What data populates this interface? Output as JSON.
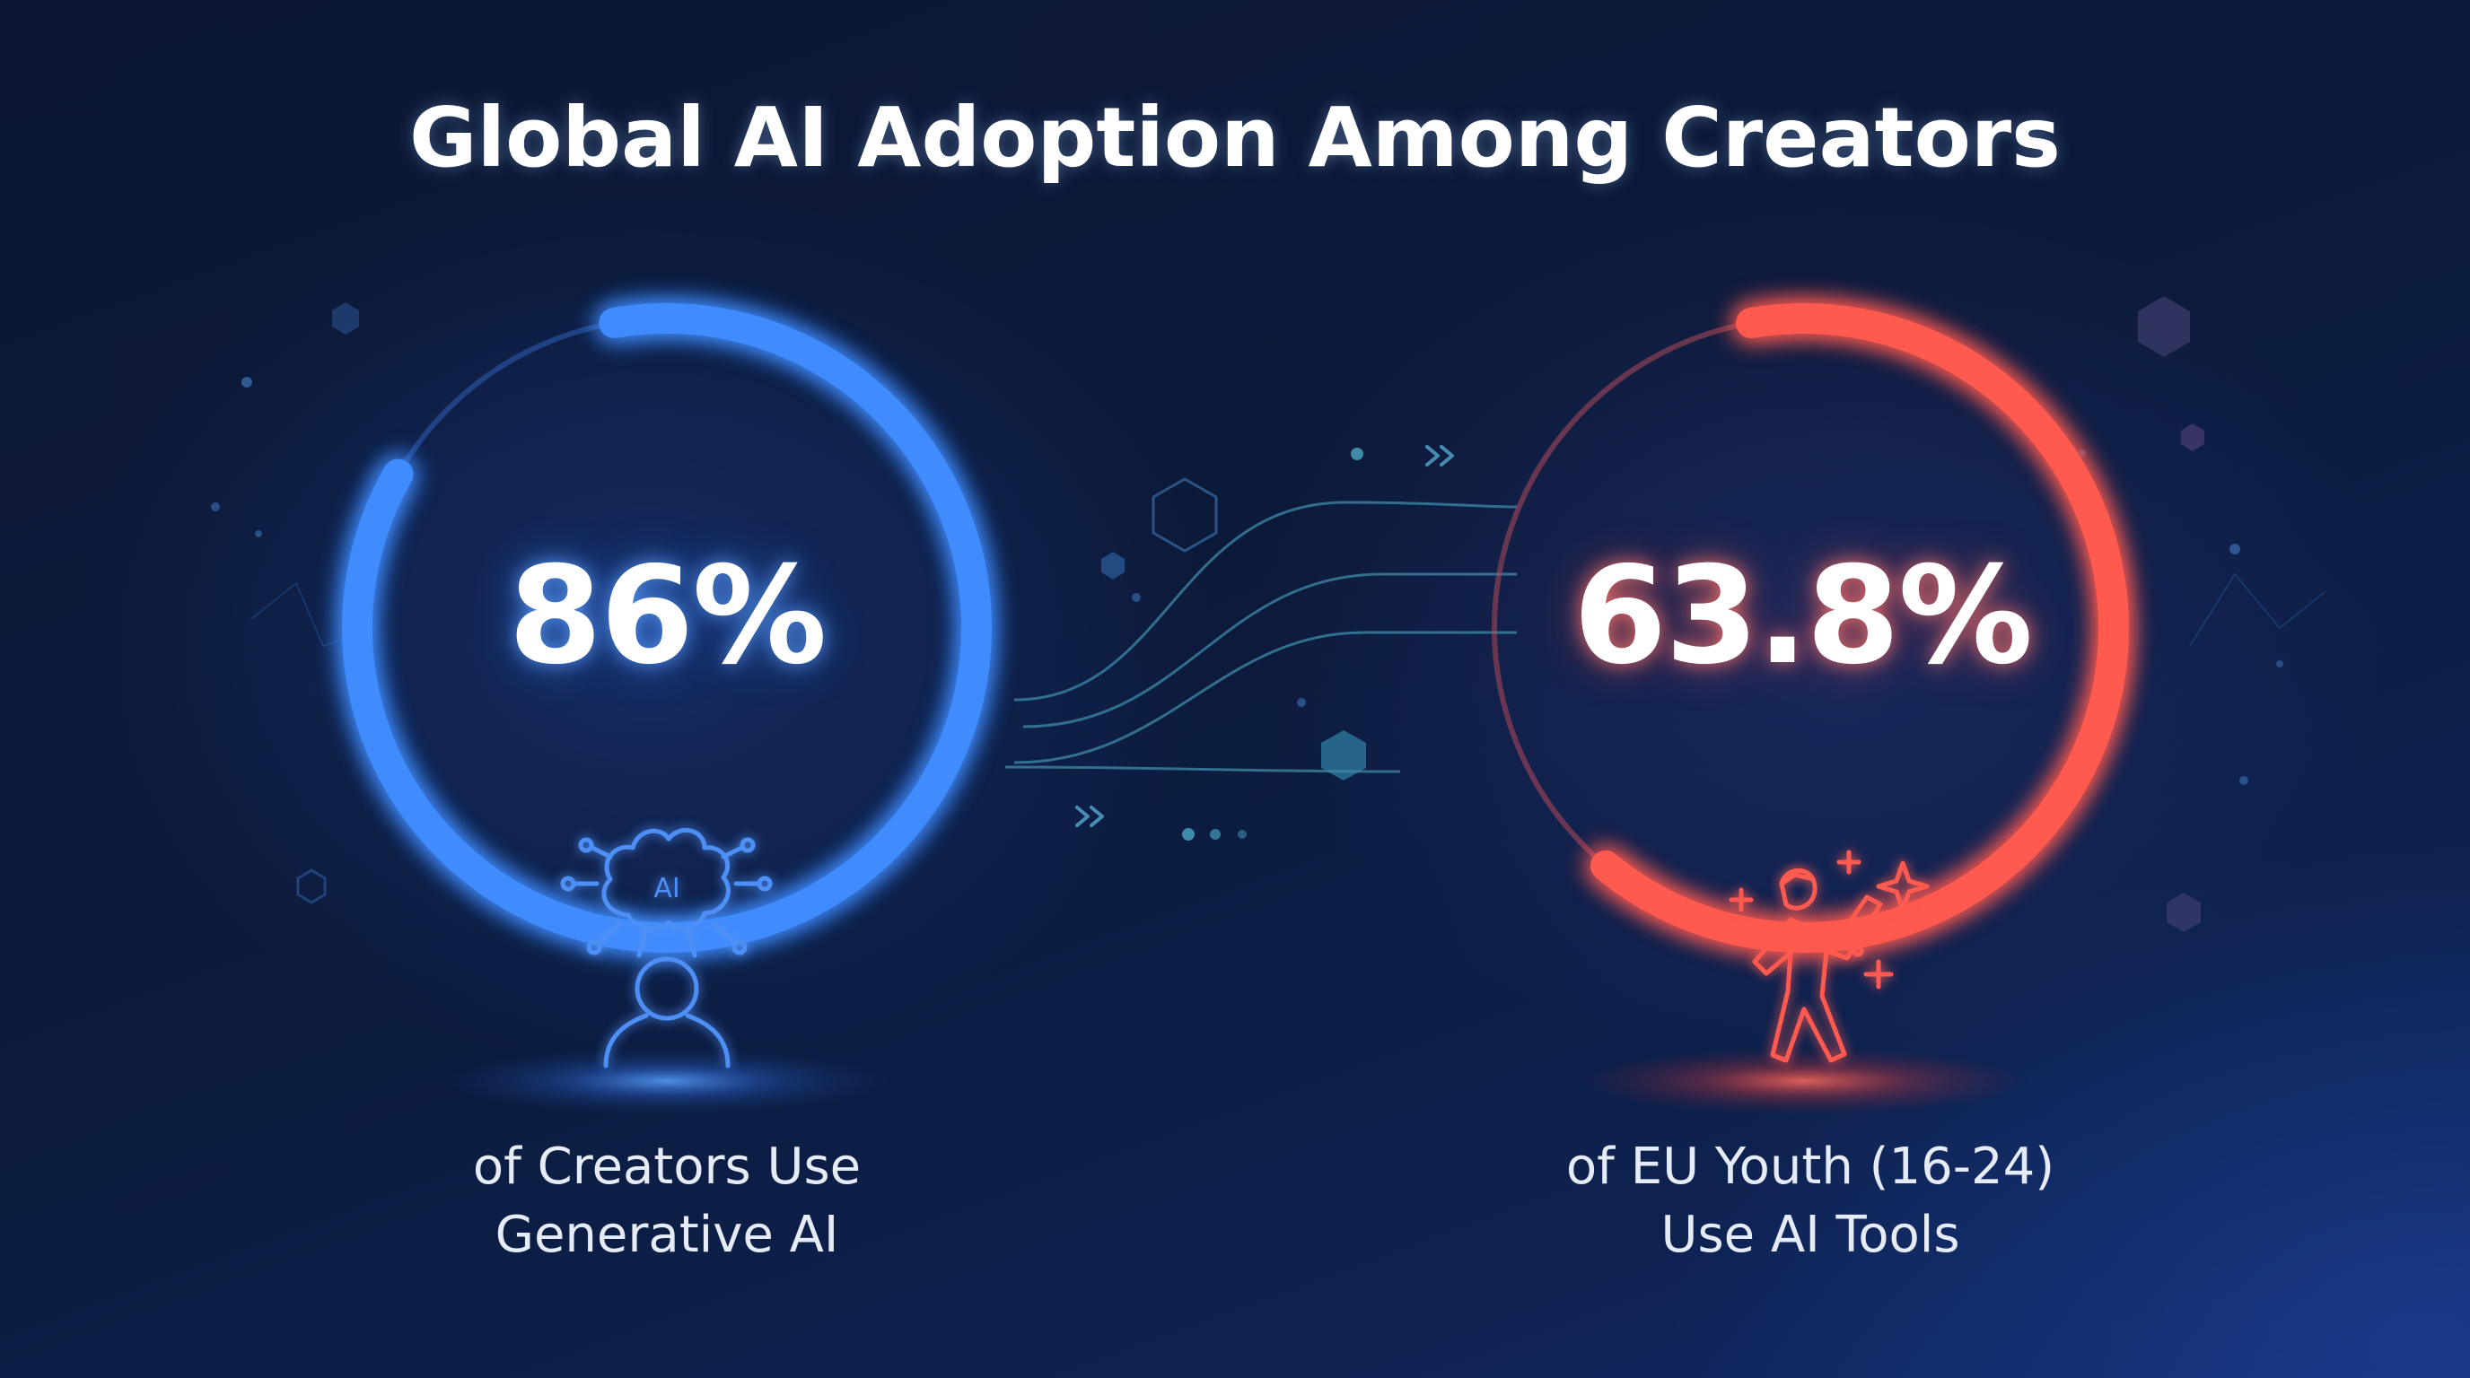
{
  "title": "Global AI Adoption Among Creators",
  "chart_data": [
    {
      "type": "pie",
      "value": 86,
      "value_label": "86%",
      "caption_lines": [
        "of Creators Use",
        "Generative AI"
      ],
      "icon": "ai-brain-person-icon",
      "color": "#3f8cff"
    },
    {
      "type": "pie",
      "value": 63.8,
      "value_label": "63.8%",
      "caption_lines": [
        "of EU Youth (16-24)",
        "Use AI Tools"
      ],
      "icon": "celebrating-person-sparkles-icon",
      "color": "#ff5a50"
    }
  ],
  "colors": {
    "background": "#0b1733",
    "accent_blue": "#3f8cff",
    "accent_red": "#ff5a50"
  }
}
